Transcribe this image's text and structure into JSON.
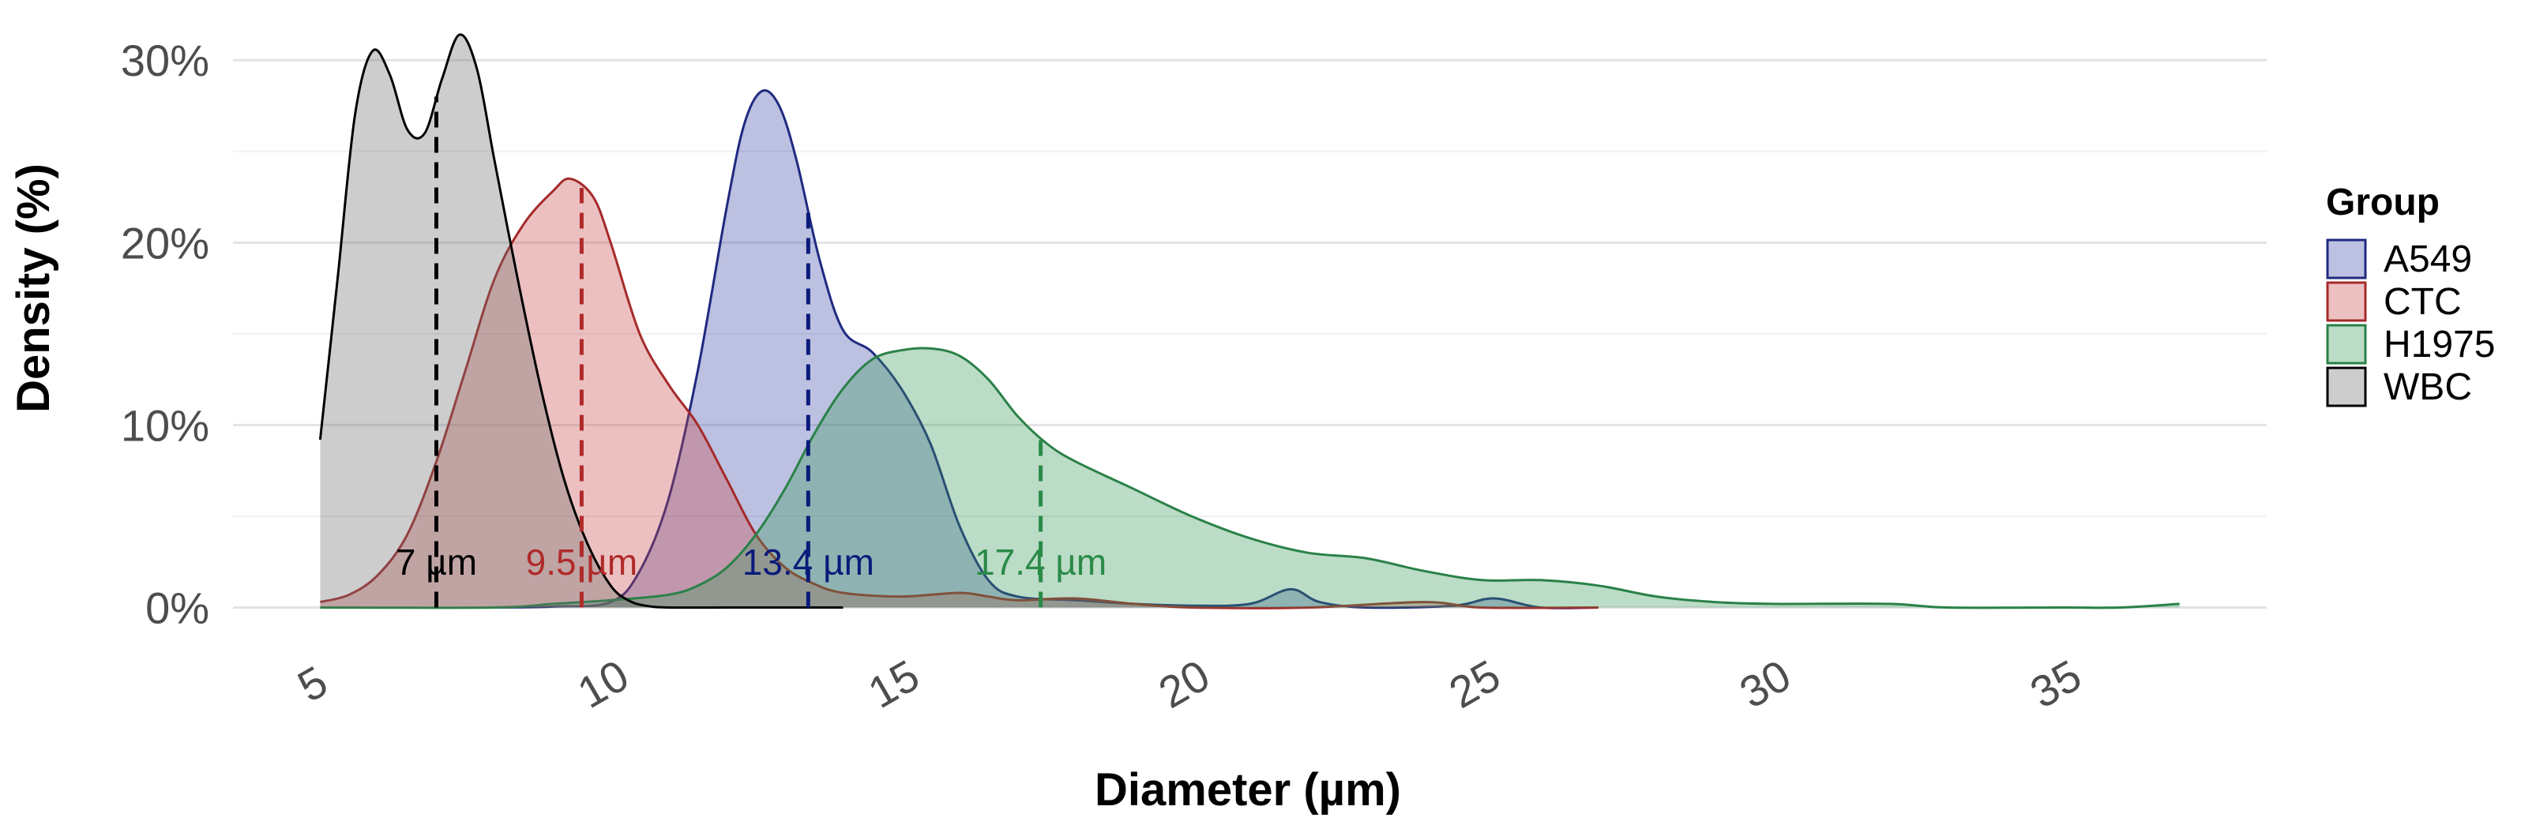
{
  "chart_data": {
    "type": "area",
    "subtype": "density",
    "title": "",
    "xlabel": "Diameter (µm)",
    "ylabel": "Density (%)",
    "xlim": [
      3.5,
      38.5
    ],
    "ylim": [
      -0.008,
      0.32
    ],
    "x_ticks": [
      5,
      10,
      15,
      20,
      25,
      30,
      35
    ],
    "x_tick_labels": [
      "5",
      "10",
      "15",
      "20",
      "25",
      "30",
      "35"
    ],
    "y_ticks": [
      0,
      0.1,
      0.2,
      0.3
    ],
    "y_tick_labels": [
      "0%",
      "10%",
      "20%",
      "30%"
    ],
    "grid": true,
    "legend": {
      "title": "Group",
      "position": "right"
    },
    "series": [
      {
        "name": "A549",
        "fill": "#3f4aa8",
        "stroke": "#1f2a80",
        "median": 13.4,
        "median_label": "13.4 µm",
        "label_color": "#0a1a7a",
        "points": [
          [
            8,
            0.0
          ],
          [
            9,
            0.0005
          ],
          [
            10,
            0.003
          ],
          [
            10.5,
            0.02
          ],
          [
            11,
            0.06
          ],
          [
            11.5,
            0.13
          ],
          [
            12,
            0.22
          ],
          [
            12.3,
            0.265
          ],
          [
            12.6,
            0.283
          ],
          [
            12.9,
            0.275
          ],
          [
            13.2,
            0.245
          ],
          [
            13.6,
            0.19
          ],
          [
            14,
            0.152
          ],
          [
            14.5,
            0.14
          ],
          [
            15,
            0.12
          ],
          [
            15.5,
            0.09
          ],
          [
            16,
            0.045
          ],
          [
            16.5,
            0.015
          ],
          [
            17,
            0.006
          ],
          [
            18,
            0.004
          ],
          [
            19,
            0.002
          ],
          [
            20,
            0.001
          ],
          [
            21,
            0.002
          ],
          [
            21.7,
            0.01
          ],
          [
            22.2,
            0.003
          ],
          [
            23,
            0.0
          ],
          [
            24.5,
            0.001
          ],
          [
            25.2,
            0.005
          ],
          [
            26,
            0.0
          ],
          [
            27,
            0.0
          ]
        ]
      },
      {
        "name": "CTC",
        "fill": "#c94a4a",
        "stroke": "#a52a2a",
        "median": 9.5,
        "median_label": "9.5 µm",
        "label_color": "#b02a2a",
        "points": [
          [
            5,
            0.003
          ],
          [
            5.5,
            0.007
          ],
          [
            6,
            0.018
          ],
          [
            6.5,
            0.04
          ],
          [
            7,
            0.08
          ],
          [
            7.5,
            0.13
          ],
          [
            8,
            0.18
          ],
          [
            8.5,
            0.21
          ],
          [
            9,
            0.228
          ],
          [
            9.3,
            0.235
          ],
          [
            9.7,
            0.225
          ],
          [
            10,
            0.2
          ],
          [
            10.5,
            0.15
          ],
          [
            11,
            0.122
          ],
          [
            11.5,
            0.1
          ],
          [
            12,
            0.07
          ],
          [
            12.5,
            0.04
          ],
          [
            13,
            0.022
          ],
          [
            13.5,
            0.013
          ],
          [
            14,
            0.008
          ],
          [
            15,
            0.006
          ],
          [
            16,
            0.008
          ],
          [
            16.5,
            0.006
          ],
          [
            17,
            0.004
          ],
          [
            18,
            0.005
          ],
          [
            19,
            0.002
          ],
          [
            20,
            0.0
          ],
          [
            22,
            0.0
          ],
          [
            24,
            0.003
          ],
          [
            25,
            0.0
          ],
          [
            27,
            0.0
          ]
        ]
      },
      {
        "name": "H1975",
        "fill": "#3d9a5c",
        "stroke": "#2a8148",
        "median": 17.4,
        "median_label": "17.4 µm",
        "label_color": "#2a8a48",
        "points": [
          [
            5,
            0.0
          ],
          [
            8,
            0.0
          ],
          [
            9,
            0.002
          ],
          [
            10,
            0.004
          ],
          [
            11,
            0.007
          ],
          [
            11.5,
            0.012
          ],
          [
            12,
            0.022
          ],
          [
            12.5,
            0.04
          ],
          [
            13,
            0.065
          ],
          [
            13.5,
            0.095
          ],
          [
            14,
            0.12
          ],
          [
            14.5,
            0.136
          ],
          [
            15,
            0.141
          ],
          [
            15.5,
            0.142
          ],
          [
            16,
            0.138
          ],
          [
            16.5,
            0.125
          ],
          [
            17,
            0.105
          ],
          [
            17.5,
            0.09
          ],
          [
            18,
            0.08
          ],
          [
            19,
            0.065
          ],
          [
            20,
            0.05
          ],
          [
            21,
            0.038
          ],
          [
            22,
            0.03
          ],
          [
            23,
            0.027
          ],
          [
            24,
            0.02
          ],
          [
            25,
            0.015
          ],
          [
            26,
            0.015
          ],
          [
            27,
            0.012
          ],
          [
            28,
            0.006
          ],
          [
            29,
            0.003
          ],
          [
            30,
            0.002
          ],
          [
            32,
            0.002
          ],
          [
            33,
            0.0
          ],
          [
            35,
            0.0
          ],
          [
            36,
            0.0
          ],
          [
            37,
            0.002
          ]
        ]
      },
      {
        "name": "WBC",
        "fill": "#6f6f6f",
        "stroke": "#000000",
        "median": 7,
        "median_label": "7 µm",
        "label_color": "#000000",
        "points": [
          [
            5,
            0.092
          ],
          [
            5.3,
            0.18
          ],
          [
            5.6,
            0.27
          ],
          [
            5.9,
            0.305
          ],
          [
            6.2,
            0.292
          ],
          [
            6.5,
            0.262
          ],
          [
            6.8,
            0.26
          ],
          [
            7.1,
            0.29
          ],
          [
            7.4,
            0.314
          ],
          [
            7.7,
            0.295
          ],
          [
            8,
            0.245
          ],
          [
            8.4,
            0.18
          ],
          [
            8.8,
            0.12
          ],
          [
            9.2,
            0.07
          ],
          [
            9.6,
            0.035
          ],
          [
            10,
            0.012
          ],
          [
            10.3,
            0.004
          ],
          [
            10.6,
            0.001
          ],
          [
            11,
            0.0
          ],
          [
            12,
            0.0
          ],
          [
            13,
            0.0
          ],
          [
            14,
            0.0
          ]
        ]
      }
    ]
  }
}
